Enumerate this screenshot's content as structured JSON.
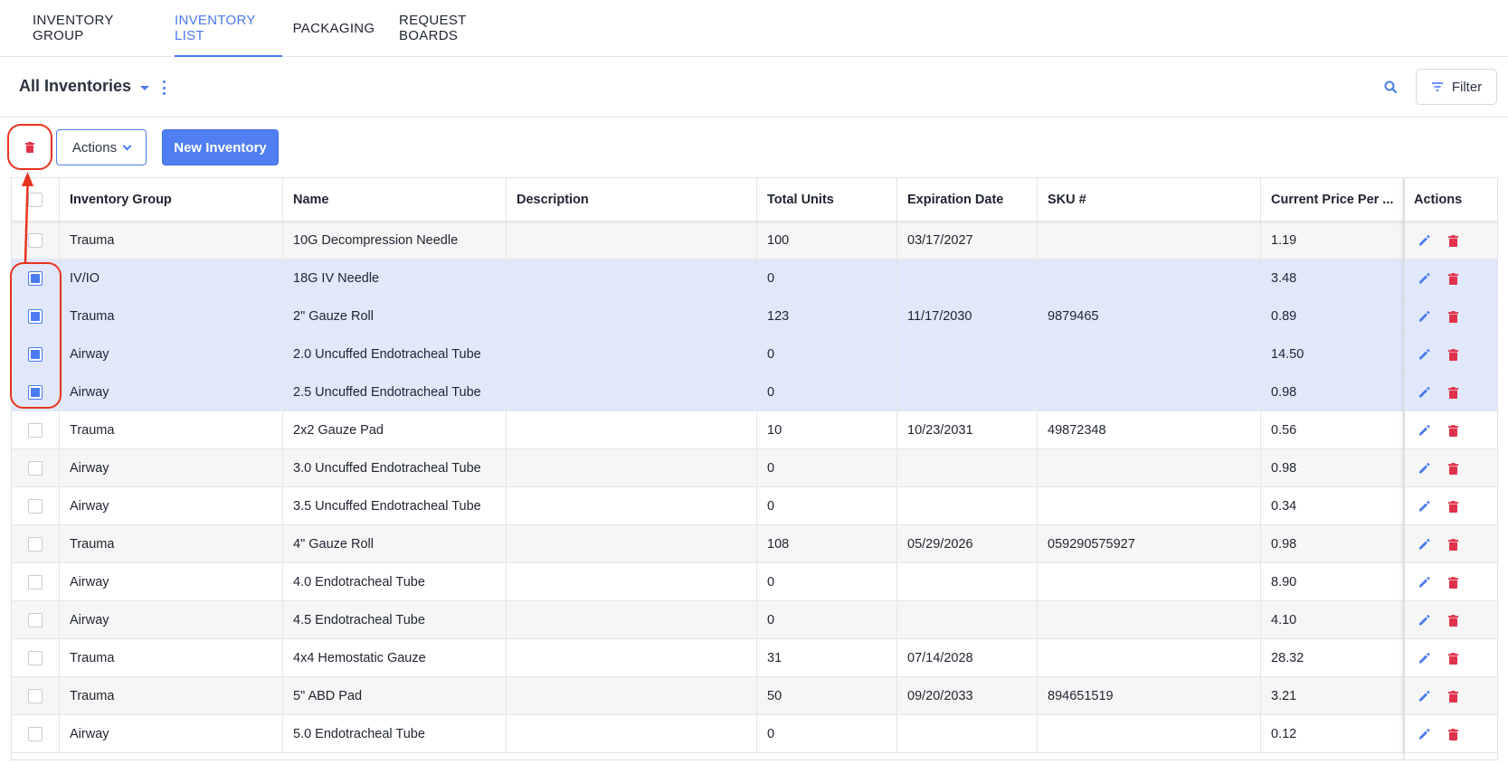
{
  "nav": {
    "tabs": [
      {
        "label": "INVENTORY GROUP"
      },
      {
        "label": "INVENTORY LIST"
      },
      {
        "label": "PACKAGING"
      },
      {
        "label": "REQUEST BOARDS"
      }
    ],
    "active_tab": "INVENTORY LIST"
  },
  "header": {
    "view_title": "All Inventories",
    "filter_label": "Filter"
  },
  "toolbar": {
    "actions_label": "Actions",
    "new_label": "New Inventory"
  },
  "table": {
    "columns": [
      "Inventory Group",
      "Name",
      "Description",
      "Total Units",
      "Expiration Date",
      "SKU #",
      "Current Price Per ...",
      "Actions"
    ],
    "rows": [
      {
        "group": "Trauma",
        "name": "10G Decompression Needle",
        "description": "",
        "units": "100",
        "expiration": "03/17/2027",
        "sku": "",
        "price": "1.19",
        "checked": false
      },
      {
        "group": "IV/IO",
        "name": "18G IV Needle",
        "description": "",
        "units": "0",
        "expiration": "",
        "sku": "",
        "price": "3.48",
        "checked": true
      },
      {
        "group": "Trauma",
        "name": "2\" Gauze Roll",
        "description": "",
        "units": "123",
        "expiration": "11/17/2030",
        "sku": "9879465",
        "price": "0.89",
        "checked": true
      },
      {
        "group": "Airway",
        "name": "2.0 Uncuffed Endotracheal Tube",
        "description": "",
        "units": "0",
        "expiration": "",
        "sku": "",
        "price": "14.50",
        "checked": true
      },
      {
        "group": "Airway",
        "name": "2.5 Uncuffed Endotracheal Tube",
        "description": "",
        "units": "0",
        "expiration": "",
        "sku": "",
        "price": "0.98",
        "checked": true
      },
      {
        "group": "Trauma",
        "name": "2x2 Gauze Pad",
        "description": "",
        "units": "10",
        "expiration": "10/23/2031",
        "sku": "49872348",
        "price": "0.56",
        "checked": false
      },
      {
        "group": "Airway",
        "name": "3.0 Uncuffed Endotracheal Tube",
        "description": "",
        "units": "0",
        "expiration": "",
        "sku": "",
        "price": "0.98",
        "checked": false
      },
      {
        "group": "Airway",
        "name": "3.5 Uncuffed Endotracheal Tube",
        "description": "",
        "units": "0",
        "expiration": "",
        "sku": "",
        "price": "0.34",
        "checked": false
      },
      {
        "group": "Trauma",
        "name": "4\" Gauze Roll",
        "description": "",
        "units": "108",
        "expiration": "05/29/2026",
        "sku": "059290575927",
        "price": "0.98",
        "checked": false
      },
      {
        "group": "Airway",
        "name": "4.0 Endotracheal Tube",
        "description": "",
        "units": "0",
        "expiration": "",
        "sku": "",
        "price": "8.90",
        "checked": false
      },
      {
        "group": "Airway",
        "name": "4.5 Endotracheal Tube",
        "description": "",
        "units": "0",
        "expiration": "",
        "sku": "",
        "price": "4.10",
        "checked": false
      },
      {
        "group": "Trauma",
        "name": "4x4 Hemostatic Gauze",
        "description": "",
        "units": "31",
        "expiration": "07/14/2028",
        "sku": "",
        "price": "28.32",
        "checked": false
      },
      {
        "group": "Trauma",
        "name": "5\" ABD Pad",
        "description": "",
        "units": "50",
        "expiration": "09/20/2033",
        "sku": "894651519",
        "price": "3.21",
        "checked": false
      },
      {
        "group": "Airway",
        "name": "5.0 Endotracheal Tube",
        "description": "",
        "units": "0",
        "expiration": "",
        "sku": "",
        "price": "0.12",
        "checked": false
      }
    ]
  },
  "colors": {
    "accent": "#4a7bf0",
    "danger": "#e0324b",
    "annotation": "#e8331e",
    "selected_row": "#e1e8fb"
  },
  "icons": [
    "search-icon",
    "filter-icon",
    "trash-icon",
    "pencil-icon",
    "kebab-icon",
    "caret-down-icon",
    "chevron-down-icon"
  ]
}
